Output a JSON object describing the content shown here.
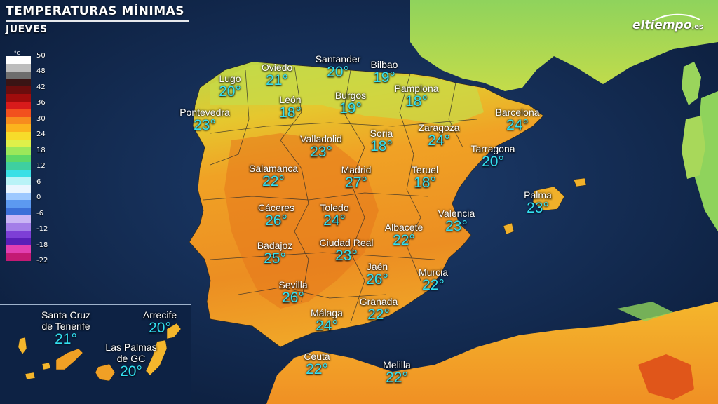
{
  "header": {
    "title": "TEMPERATURAS MÍNIMAS",
    "subtitle": "JUEVES"
  },
  "brand": {
    "name": "eltiempo",
    "suffix": ".es"
  },
  "legend": {
    "unit": "°C",
    "ticks": [
      "50",
      "48",
      "42",
      "36",
      "30",
      "24",
      "18",
      "12",
      "6",
      "0",
      "-6",
      "-12",
      "-18",
      "-22"
    ],
    "colors": [
      "#ffffff",
      "#bdbdbd",
      "#6e6e6e",
      "#3a1414",
      "#6b0d0d",
      "#a00c0c",
      "#d81b1b",
      "#f2501e",
      "#f78c1e",
      "#fbb41d",
      "#f7dc2a",
      "#dff04a",
      "#9be85a",
      "#5cd867",
      "#3fcfa0",
      "#39e0e6",
      "#b9f3f7",
      "#eaf6ff",
      "#9ec9ff",
      "#5c99f0",
      "#3b6fd8",
      "#c9b5f5",
      "#a37ee8",
      "#7d3fd6",
      "#5a1fb8",
      "#e23fb1",
      "#c41a74"
    ]
  },
  "cities": [
    {
      "name": "Santander",
      "temp": "20°"
    },
    {
      "name": "Bilbao",
      "temp": "19°"
    },
    {
      "name": "Oviedo",
      "temp": "21°"
    },
    {
      "name": "Lugo",
      "temp": "20°"
    },
    {
      "name": "León",
      "temp": "18°"
    },
    {
      "name": "Burgos",
      "temp": "19°"
    },
    {
      "name": "Pamplona",
      "temp": "18°"
    },
    {
      "name": "Pontevedra",
      "temp": "23°"
    },
    {
      "name": "Barcelona",
      "temp": "24°"
    },
    {
      "name": "Valladolid",
      "temp": "23°"
    },
    {
      "name": "Soria",
      "temp": "18°"
    },
    {
      "name": "Zaragoza",
      "temp": "24°"
    },
    {
      "name": "Tarragona",
      "temp": "20°"
    },
    {
      "name": "Salamanca",
      "temp": "22°"
    },
    {
      "name": "Madrid",
      "temp": "27°"
    },
    {
      "name": "Teruel",
      "temp": "18°"
    },
    {
      "name": "Palma",
      "temp": "23°"
    },
    {
      "name": "Cáceres",
      "temp": "26°"
    },
    {
      "name": "Toledo",
      "temp": "24°"
    },
    {
      "name": "Valencia",
      "temp": "23°"
    },
    {
      "name": "Albacete",
      "temp": "22°"
    },
    {
      "name": "Badajoz",
      "temp": "25°"
    },
    {
      "name": "Ciudad Real",
      "temp": "23°"
    },
    {
      "name": "Jaén",
      "temp": "26°"
    },
    {
      "name": "Murcia",
      "temp": "22°"
    },
    {
      "name": "Sevilla",
      "temp": "26°"
    },
    {
      "name": "Granada",
      "temp": "22°"
    },
    {
      "name": "Málaga",
      "temp": "24°"
    },
    {
      "name": "Ceuta",
      "temp": "22°"
    },
    {
      "name": "Melilla",
      "temp": "22°"
    }
  ],
  "inset": {
    "cities": [
      {
        "name": "Santa Cruz",
        "name2": "de Tenerife",
        "temp": "21°"
      },
      {
        "name": "Arrecife",
        "name2": "",
        "temp": "20°"
      },
      {
        "name": "Las Palmas",
        "name2": "de GC",
        "temp": "20°"
      }
    ]
  },
  "colors": {
    "sea": "#0f2a52",
    "land_warm": "#f0a025",
    "land_hot": "#e8781e",
    "land_cool": "#c9e04a",
    "land_green": "#7fd160",
    "temp_text": "#33e0f0"
  }
}
